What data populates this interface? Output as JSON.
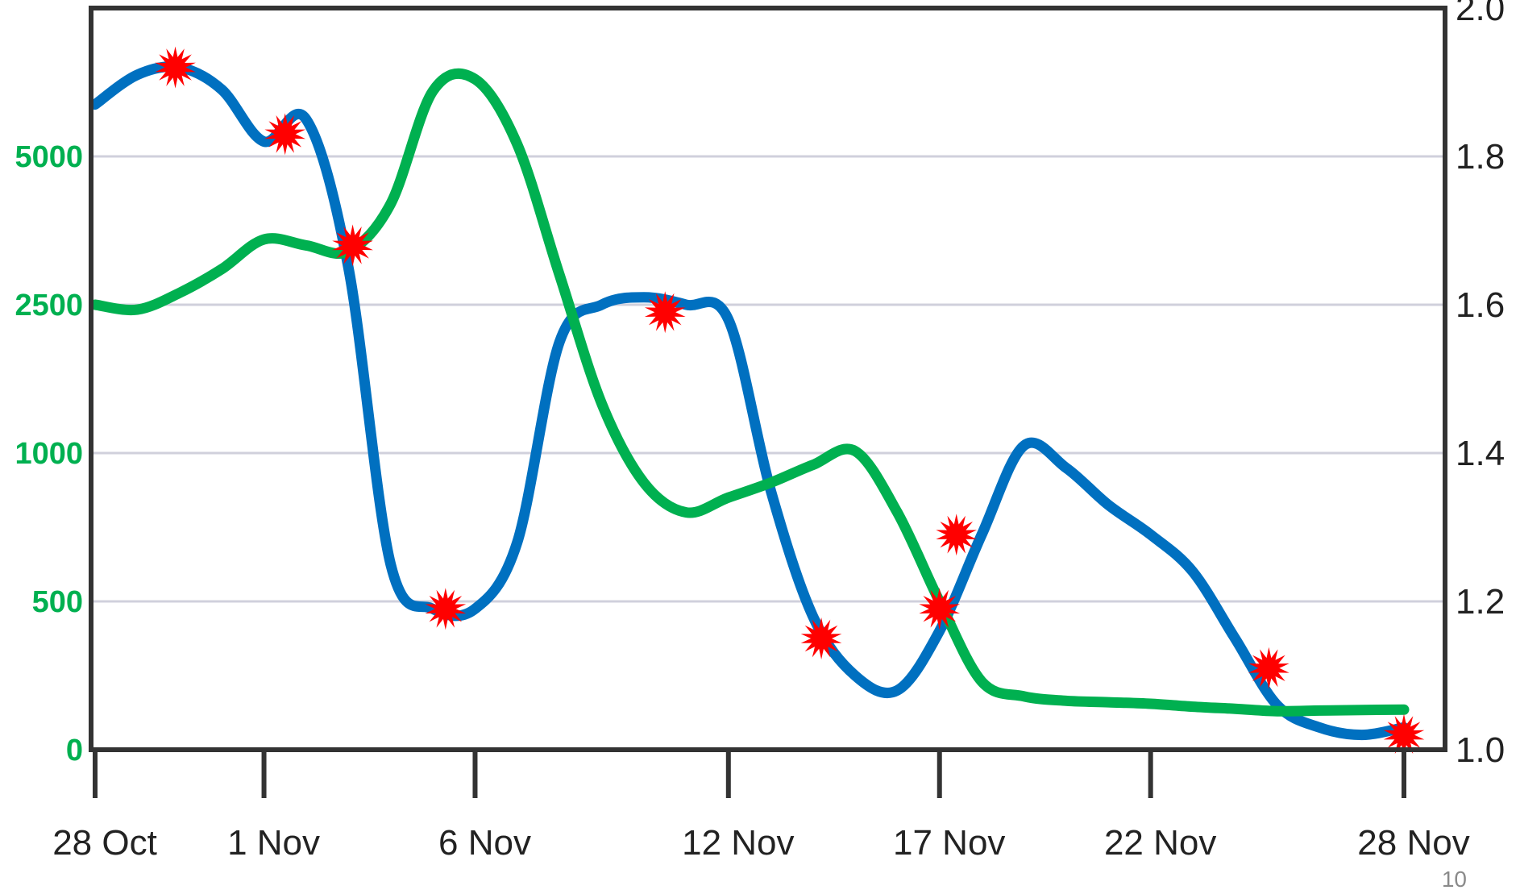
{
  "chart_data": {
    "type": "line",
    "left_axis": {
      "ticks": [
        {
          "value": 0,
          "label": "0"
        },
        {
          "value": 500,
          "label": "500"
        },
        {
          "value": 1000,
          "label": "1000"
        },
        {
          "value": 2500,
          "label": "2500"
        },
        {
          "value": 5000,
          "label": "5000"
        }
      ],
      "color": "#00b050",
      "scale": "nonlinear"
    },
    "right_axis": {
      "ticks": [
        {
          "value": 1.0,
          "label": "1.0"
        },
        {
          "value": 1.2,
          "label": "1.2"
        },
        {
          "value": 1.4,
          "label": "1.4"
        },
        {
          "value": 1.6,
          "label": "1.6"
        },
        {
          "value": 1.8,
          "label": "1.8"
        },
        {
          "value": 2.0,
          "label": "2.0"
        }
      ],
      "ylim": [
        1.0,
        2.0
      ]
    },
    "x_axis": {
      "ticks": [
        {
          "day": 0,
          "label": "28 Oct"
        },
        {
          "day": 4,
          "label": "1 Nov"
        },
        {
          "day": 9,
          "label": "6 Nov"
        },
        {
          "day": 15,
          "label": "12 Nov"
        },
        {
          "day": 20,
          "label": "17 Nov"
        },
        {
          "day": 25,
          "label": "22 Nov"
        },
        {
          "day": 31,
          "label": "28 Nov"
        }
      ]
    },
    "grid": "horizontal",
    "series": [
      {
        "color": "#0070c0",
        "axis": "right",
        "points": [
          [
            0,
            1.87
          ],
          [
            1,
            1.91
          ],
          [
            2,
            1.92
          ],
          [
            3,
            1.89
          ],
          [
            4,
            1.82
          ],
          [
            5,
            1.85
          ],
          [
            6,
            1.65
          ],
          [
            7,
            1.25
          ],
          [
            8,
            1.19
          ],
          [
            9,
            1.19
          ],
          [
            10,
            1.28
          ],
          [
            11,
            1.55
          ],
          [
            12,
            1.6
          ],
          [
            13,
            1.61
          ],
          [
            14,
            1.6
          ],
          [
            15,
            1.58
          ],
          [
            16,
            1.35
          ],
          [
            17,
            1.18
          ],
          [
            18,
            1.1
          ],
          [
            19,
            1.08
          ],
          [
            20,
            1.16
          ],
          [
            21,
            1.29
          ],
          [
            22,
            1.41
          ],
          [
            23,
            1.38
          ],
          [
            24,
            1.33
          ],
          [
            25,
            1.29
          ],
          [
            26,
            1.24
          ],
          [
            27,
            1.15
          ],
          [
            28,
            1.06
          ],
          [
            29,
            1.03
          ],
          [
            30,
            1.02
          ],
          [
            31,
            1.03
          ]
        ]
      },
      {
        "color": "#00b050",
        "axis": "left",
        "points": [
          [
            0,
            2500
          ],
          [
            1,
            2450
          ],
          [
            2,
            2700
          ],
          [
            3,
            3100
          ],
          [
            4,
            3600
          ],
          [
            5,
            3500
          ],
          [
            6,
            3400
          ],
          [
            7,
            4200
          ],
          [
            8,
            6100
          ],
          [
            9,
            6300
          ],
          [
            10,
            5200
          ],
          [
            11,
            3000
          ],
          [
            12,
            1500
          ],
          [
            13,
            900
          ],
          [
            14,
            800
          ],
          [
            15,
            850
          ],
          [
            16,
            900
          ],
          [
            17,
            960
          ],
          [
            18,
            1020
          ],
          [
            19,
            800
          ],
          [
            20,
            500
          ],
          [
            21,
            230
          ],
          [
            22,
            180
          ],
          [
            23,
            165
          ],
          [
            24,
            160
          ],
          [
            25,
            155
          ],
          [
            26,
            145
          ],
          [
            27,
            138
          ],
          [
            28,
            130
          ],
          [
            29,
            132
          ],
          [
            30,
            134
          ],
          [
            31,
            135
          ]
        ]
      }
    ],
    "markers": {
      "color": "#ff0000",
      "points": [
        {
          "day": 1.9,
          "right": 1.92
        },
        {
          "day": 4.5,
          "right": 1.83
        },
        {
          "day": 6.1,
          "right": 1.68
        },
        {
          "day": 8.3,
          "right": 1.19
        },
        {
          "day": 13.5,
          "right": 1.59
        },
        {
          "day": 17.2,
          "right": 1.15
        },
        {
          "day": 20.0,
          "right": 1.19
        },
        {
          "day": 20.4,
          "right": 1.29
        },
        {
          "day": 27.8,
          "right": 1.11
        },
        {
          "day": 31.0,
          "right": 1.02
        }
      ]
    }
  },
  "page_number": "10"
}
